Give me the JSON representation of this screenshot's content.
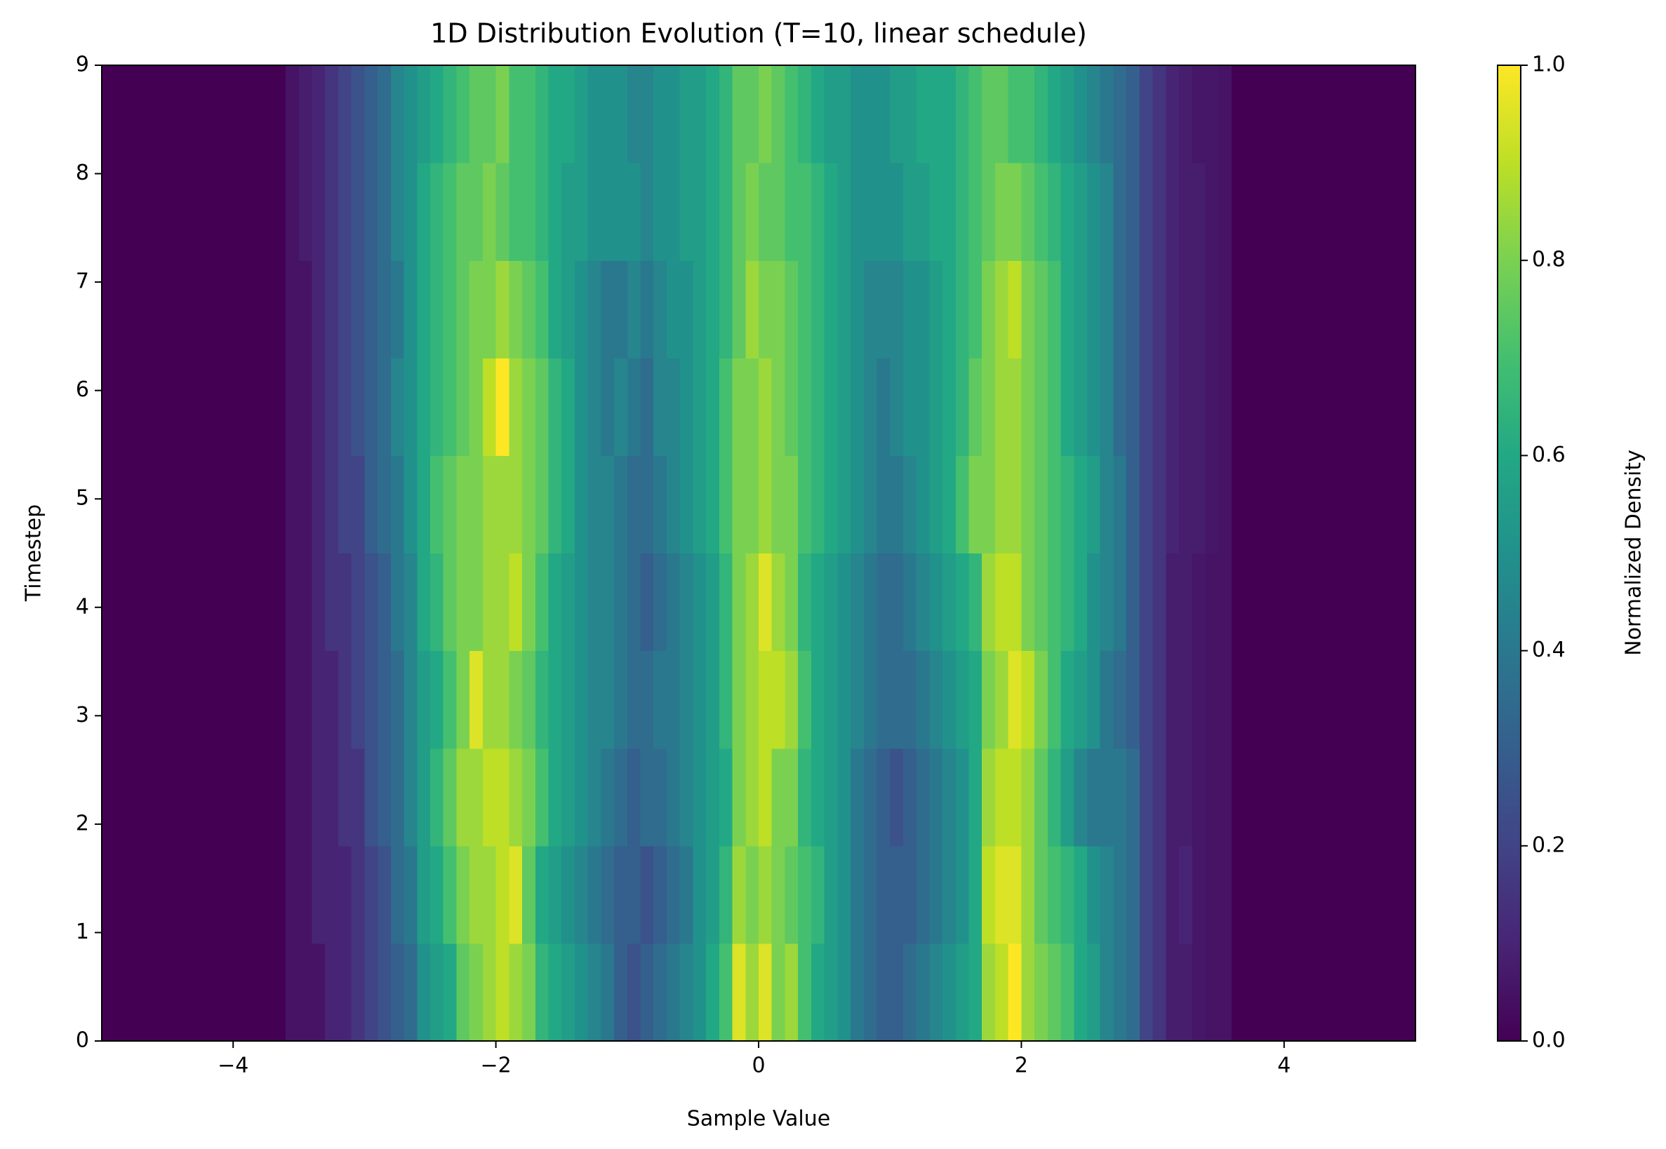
{
  "chart_data": {
    "type": "heatmap",
    "title": "1D Distribution Evolution (T=10, linear schedule)",
    "x_label": "Sample Value",
    "y_label": "Timestep",
    "xlim": [
      -5,
      5
    ],
    "ylim": [
      0,
      9
    ],
    "xticks": [
      {
        "value": -4,
        "label": "−4"
      },
      {
        "value": -2,
        "label": "−2"
      },
      0,
      2,
      4
    ],
    "yticks": [
      0,
      1,
      2,
      3,
      4,
      5,
      6,
      7,
      8,
      9
    ],
    "colormap": "viridis",
    "colorbar": {
      "label": "Normalized Density",
      "lim": [
        0,
        1
      ],
      "ticks": [
        {
          "value": 0,
          "label": "0.0"
        },
        0.2,
        0.4,
        0.6,
        0.8,
        {
          "value": 1,
          "label": "1.0"
        }
      ]
    },
    "z": [
      [
        0,
        0,
        0,
        0,
        0,
        0,
        0,
        0,
        0,
        0,
        0,
        0,
        0,
        0,
        0.05,
        0.05,
        0.05,
        0.1,
        0.1,
        0.15,
        0.2,
        0.25,
        0.3,
        0.35,
        0.5,
        0.55,
        0.6,
        0.75,
        0.8,
        0.85,
        0.9,
        0.85,
        0.8,
        0.65,
        0.6,
        0.55,
        0.5,
        0.45,
        0.4,
        0.3,
        0.25,
        0.3,
        0.35,
        0.4,
        0.45,
        0.5,
        0.6,
        0.7,
        0.95,
        0.85,
        0.95,
        0.8,
        0.85,
        0.7,
        0.6,
        0.55,
        0.5,
        0.4,
        0.35,
        0.3,
        0.3,
        0.35,
        0.4,
        0.45,
        0.5,
        0.55,
        0.6,
        0.85,
        0.9,
        1.0,
        0.85,
        0.8,
        0.75,
        0.7,
        0.6,
        0.55,
        0.45,
        0.4,
        0.35,
        0.2,
        0.15,
        0.08,
        0.08,
        0.06,
        0.05,
        0.05,
        0,
        0,
        0,
        0,
        0,
        0,
        0,
        0,
        0,
        0,
        0,
        0,
        0,
        0
      ],
      [
        0,
        0,
        0,
        0,
        0,
        0,
        0,
        0,
        0,
        0,
        0,
        0,
        0,
        0,
        0.05,
        0.05,
        0.1,
        0.1,
        0.1,
        0.15,
        0.2,
        0.25,
        0.35,
        0.4,
        0.55,
        0.6,
        0.7,
        0.8,
        0.85,
        0.85,
        0.9,
        0.95,
        0.75,
        0.6,
        0.55,
        0.5,
        0.45,
        0.4,
        0.35,
        0.3,
        0.3,
        0.25,
        0.3,
        0.35,
        0.4,
        0.5,
        0.55,
        0.65,
        0.85,
        0.8,
        0.85,
        0.8,
        0.75,
        0.7,
        0.65,
        0.55,
        0.5,
        0.4,
        0.35,
        0.3,
        0.3,
        0.3,
        0.35,
        0.4,
        0.45,
        0.5,
        0.6,
        0.9,
        0.95,
        0.95,
        0.85,
        0.75,
        0.7,
        0.65,
        0.6,
        0.5,
        0.45,
        0.4,
        0.35,
        0.2,
        0.15,
        0.08,
        0.1,
        0.06,
        0.05,
        0.05,
        0,
        0,
        0,
        0,
        0,
        0,
        0,
        0,
        0,
        0,
        0,
        0,
        0,
        0
      ],
      [
        0,
        0,
        0,
        0,
        0,
        0,
        0,
        0,
        0,
        0,
        0,
        0,
        0,
        0,
        0.05,
        0.05,
        0.1,
        0.1,
        0.15,
        0.15,
        0.25,
        0.3,
        0.35,
        0.45,
        0.55,
        0.65,
        0.75,
        0.85,
        0.85,
        0.9,
        0.9,
        0.85,
        0.8,
        0.7,
        0.6,
        0.55,
        0.5,
        0.45,
        0.4,
        0.35,
        0.3,
        0.35,
        0.35,
        0.4,
        0.45,
        0.5,
        0.55,
        0.6,
        0.8,
        0.85,
        0.9,
        0.8,
        0.8,
        0.65,
        0.6,
        0.55,
        0.5,
        0.4,
        0.35,
        0.3,
        0.25,
        0.3,
        0.35,
        0.4,
        0.45,
        0.5,
        0.6,
        0.85,
        0.9,
        0.9,
        0.85,
        0.75,
        0.65,
        0.55,
        0.45,
        0.4,
        0.4,
        0.4,
        0.35,
        0.2,
        0.15,
        0.08,
        0.08,
        0.06,
        0.05,
        0.05,
        0,
        0,
        0,
        0,
        0,
        0,
        0,
        0,
        0,
        0,
        0,
        0,
        0,
        0
      ],
      [
        0,
        0,
        0,
        0,
        0,
        0,
        0,
        0,
        0,
        0,
        0,
        0,
        0,
        0,
        0.05,
        0.05,
        0.1,
        0.1,
        0.15,
        0.2,
        0.25,
        0.3,
        0.35,
        0.45,
        0.55,
        0.6,
        0.7,
        0.8,
        0.95,
        0.85,
        0.85,
        0.8,
        0.75,
        0.65,
        0.6,
        0.55,
        0.5,
        0.45,
        0.45,
        0.4,
        0.35,
        0.35,
        0.4,
        0.4,
        0.45,
        0.5,
        0.55,
        0.65,
        0.8,
        0.85,
        0.9,
        0.9,
        0.85,
        0.7,
        0.6,
        0.55,
        0.5,
        0.45,
        0.4,
        0.35,
        0.35,
        0.35,
        0.4,
        0.45,
        0.5,
        0.55,
        0.6,
        0.8,
        0.85,
        0.95,
        0.9,
        0.8,
        0.7,
        0.6,
        0.55,
        0.5,
        0.4,
        0.35,
        0.3,
        0.2,
        0.15,
        0.08,
        0.08,
        0.06,
        0.05,
        0.05,
        0,
        0,
        0,
        0,
        0,
        0,
        0,
        0,
        0,
        0,
        0,
        0,
        0,
        0
      ],
      [
        0,
        0,
        0,
        0,
        0,
        0,
        0,
        0,
        0,
        0,
        0,
        0,
        0,
        0,
        0.05,
        0.05,
        0.1,
        0.15,
        0.15,
        0.2,
        0.25,
        0.3,
        0.4,
        0.45,
        0.6,
        0.65,
        0.75,
        0.8,
        0.8,
        0.85,
        0.85,
        0.9,
        0.8,
        0.7,
        0.6,
        0.55,
        0.5,
        0.45,
        0.45,
        0.4,
        0.35,
        0.3,
        0.35,
        0.4,
        0.45,
        0.5,
        0.55,
        0.65,
        0.8,
        0.85,
        0.95,
        0.85,
        0.8,
        0.65,
        0.6,
        0.55,
        0.5,
        0.45,
        0.4,
        0.35,
        0.35,
        0.4,
        0.45,
        0.5,
        0.55,
        0.6,
        0.65,
        0.85,
        0.9,
        0.9,
        0.8,
        0.75,
        0.7,
        0.65,
        0.6,
        0.5,
        0.45,
        0.4,
        0.3,
        0.2,
        0.15,
        0.08,
        0.08,
        0.06,
        0.05,
        0.05,
        0,
        0,
        0,
        0,
        0,
        0,
        0,
        0,
        0,
        0,
        0,
        0,
        0,
        0
      ],
      [
        0,
        0,
        0,
        0,
        0,
        0,
        0,
        0,
        0,
        0,
        0,
        0,
        0,
        0,
        0.05,
        0.05,
        0.1,
        0.15,
        0.2,
        0.2,
        0.3,
        0.35,
        0.4,
        0.5,
        0.6,
        0.7,
        0.75,
        0.8,
        0.8,
        0.85,
        0.85,
        0.85,
        0.8,
        0.75,
        0.65,
        0.6,
        0.5,
        0.45,
        0.45,
        0.4,
        0.35,
        0.35,
        0.4,
        0.45,
        0.5,
        0.55,
        0.6,
        0.7,
        0.8,
        0.8,
        0.85,
        0.8,
        0.8,
        0.7,
        0.65,
        0.6,
        0.55,
        0.5,
        0.45,
        0.4,
        0.4,
        0.45,
        0.5,
        0.55,
        0.6,
        0.7,
        0.8,
        0.8,
        0.85,
        0.85,
        0.8,
        0.75,
        0.7,
        0.65,
        0.6,
        0.55,
        0.45,
        0.4,
        0.3,
        0.2,
        0.15,
        0.1,
        0.08,
        0.08,
        0.06,
        0.05,
        0,
        0,
        0,
        0,
        0,
        0,
        0,
        0,
        0,
        0,
        0,
        0,
        0,
        0
      ],
      [
        0,
        0,
        0,
        0,
        0,
        0,
        0,
        0,
        0,
        0,
        0,
        0,
        0,
        0,
        0.05,
        0.05,
        0.1,
        0.15,
        0.2,
        0.25,
        0.3,
        0.35,
        0.45,
        0.5,
        0.6,
        0.65,
        0.7,
        0.75,
        0.8,
        0.9,
        1.0,
        0.85,
        0.8,
        0.75,
        0.65,
        0.6,
        0.5,
        0.45,
        0.4,
        0.45,
        0.4,
        0.35,
        0.45,
        0.45,
        0.5,
        0.55,
        0.6,
        0.7,
        0.8,
        0.8,
        0.85,
        0.8,
        0.75,
        0.7,
        0.65,
        0.6,
        0.55,
        0.5,
        0.45,
        0.4,
        0.45,
        0.5,
        0.5,
        0.55,
        0.6,
        0.65,
        0.75,
        0.8,
        0.85,
        0.85,
        0.8,
        0.75,
        0.7,
        0.6,
        0.55,
        0.5,
        0.45,
        0.35,
        0.3,
        0.2,
        0.15,
        0.1,
        0.08,
        0.08,
        0.06,
        0.05,
        0,
        0,
        0,
        0,
        0,
        0,
        0,
        0,
        0,
        0,
        0,
        0,
        0,
        0
      ],
      [
        0,
        0,
        0,
        0,
        0,
        0,
        0,
        0,
        0,
        0,
        0,
        0,
        0,
        0,
        0.05,
        0.05,
        0.1,
        0.15,
        0.2,
        0.25,
        0.3,
        0.35,
        0.4,
        0.5,
        0.6,
        0.65,
        0.7,
        0.75,
        0.8,
        0.8,
        0.85,
        0.8,
        0.75,
        0.7,
        0.6,
        0.55,
        0.5,
        0.45,
        0.4,
        0.4,
        0.45,
        0.4,
        0.45,
        0.5,
        0.5,
        0.55,
        0.6,
        0.65,
        0.75,
        0.85,
        0.8,
        0.8,
        0.75,
        0.7,
        0.65,
        0.6,
        0.55,
        0.5,
        0.45,
        0.45,
        0.45,
        0.5,
        0.5,
        0.55,
        0.6,
        0.65,
        0.7,
        0.8,
        0.85,
        0.9,
        0.8,
        0.75,
        0.7,
        0.6,
        0.55,
        0.5,
        0.45,
        0.35,
        0.3,
        0.2,
        0.15,
        0.1,
        0.08,
        0.08,
        0.06,
        0.05,
        0,
        0,
        0,
        0,
        0,
        0,
        0,
        0,
        0,
        0,
        0,
        0,
        0,
        0
      ],
      [
        0,
        0,
        0,
        0,
        0,
        0,
        0,
        0,
        0,
        0,
        0,
        0,
        0,
        0,
        0.05,
        0.08,
        0.1,
        0.15,
        0.2,
        0.25,
        0.3,
        0.35,
        0.45,
        0.5,
        0.6,
        0.65,
        0.7,
        0.75,
        0.75,
        0.8,
        0.75,
        0.7,
        0.7,
        0.65,
        0.6,
        0.55,
        0.55,
        0.5,
        0.5,
        0.5,
        0.5,
        0.45,
        0.5,
        0.5,
        0.55,
        0.55,
        0.6,
        0.65,
        0.75,
        0.8,
        0.75,
        0.75,
        0.7,
        0.7,
        0.65,
        0.6,
        0.55,
        0.5,
        0.5,
        0.5,
        0.5,
        0.55,
        0.55,
        0.6,
        0.6,
        0.65,
        0.7,
        0.75,
        0.8,
        0.8,
        0.75,
        0.7,
        0.65,
        0.6,
        0.55,
        0.5,
        0.45,
        0.35,
        0.3,
        0.2,
        0.15,
        0.1,
        0.08,
        0.08,
        0.06,
        0.05,
        0,
        0,
        0,
        0,
        0,
        0,
        0,
        0,
        0,
        0,
        0,
        0,
        0,
        0
      ],
      [
        0,
        0,
        0,
        0,
        0,
        0,
        0,
        0,
        0,
        0,
        0,
        0,
        0,
        0,
        0.05,
        0.08,
        0.1,
        0.15,
        0.2,
        0.25,
        0.3,
        0.35,
        0.45,
        0.5,
        0.55,
        0.6,
        0.65,
        0.7,
        0.75,
        0.75,
        0.8,
        0.7,
        0.7,
        0.65,
        0.6,
        0.6,
        0.55,
        0.5,
        0.5,
        0.5,
        0.45,
        0.45,
        0.5,
        0.5,
        0.55,
        0.55,
        0.6,
        0.65,
        0.75,
        0.75,
        0.8,
        0.75,
        0.7,
        0.65,
        0.6,
        0.55,
        0.55,
        0.5,
        0.5,
        0.5,
        0.55,
        0.55,
        0.6,
        0.6,
        0.6,
        0.65,
        0.7,
        0.75,
        0.75,
        0.7,
        0.7,
        0.65,
        0.6,
        0.55,
        0.5,
        0.45,
        0.4,
        0.35,
        0.3,
        0.2,
        0.15,
        0.1,
        0.08,
        0.06,
        0.06,
        0.05,
        0,
        0,
        0,
        0,
        0,
        0,
        0,
        0,
        0,
        0,
        0,
        0,
        0,
        0
      ]
    ]
  }
}
